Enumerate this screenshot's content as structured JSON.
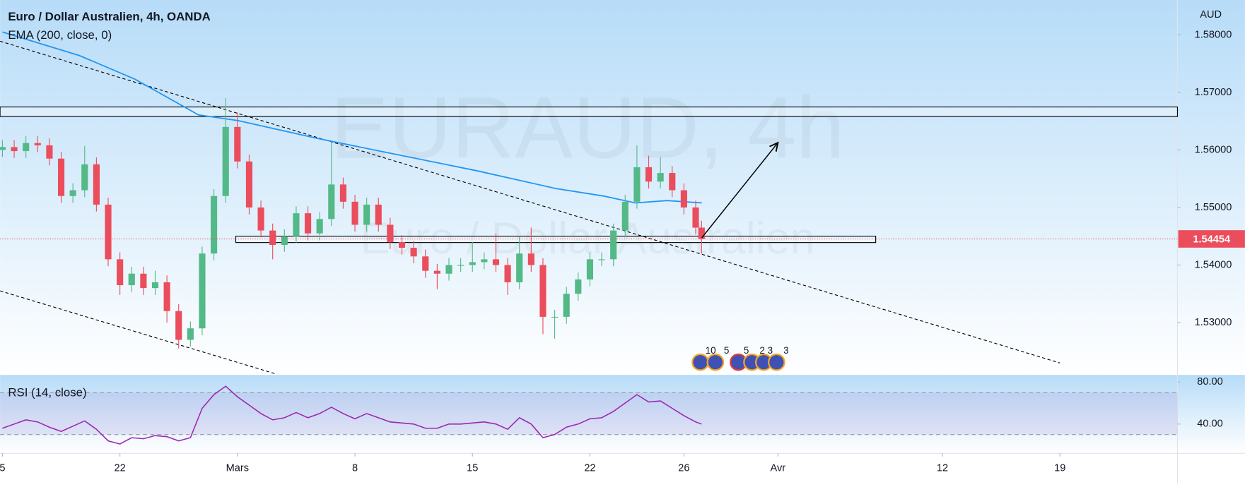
{
  "chart_data": [
    {
      "type": "candlestick",
      "title": "Euro / Dollar Australien, 4h, OANDA",
      "indicator": "EMA (200, close, 0)",
      "currency": "AUD",
      "watermark": "EURAUD, 4h",
      "watermark_subtitle": "Euro / Dollar Australien",
      "x": [
        0,
        0.5,
        1,
        1.5,
        2,
        2.5,
        3,
        3.5,
        4,
        4.5,
        5,
        5.5,
        6,
        6.5,
        7,
        7.5,
        8,
        8.5,
        9,
        9.5,
        10,
        10.5,
        11,
        11.5,
        12,
        12.5,
        13,
        13.5,
        14,
        14.5,
        15,
        15.5,
        16,
        16.5,
        17,
        17.5,
        18,
        18.5,
        19,
        19.5,
        20,
        20.5,
        21,
        21.5,
        22,
        22.5,
        23,
        23.5,
        24,
        24.5,
        25,
        25.5,
        26,
        26.5,
        27,
        27.5,
        28,
        28.5,
        29,
        29.5,
        29.75
      ],
      "open": [
        1.56,
        1.5605,
        1.5598,
        1.5612,
        1.5608,
        1.5585,
        1.552,
        1.553,
        1.5575,
        1.5505,
        1.541,
        1.5365,
        1.5385,
        1.536,
        1.537,
        1.532,
        1.527,
        1.529,
        1.542,
        1.552,
        1.564,
        1.558,
        1.55,
        1.546,
        1.5435,
        1.545,
        1.549,
        1.5455,
        1.548,
        1.554,
        1.551,
        1.547,
        1.5505,
        1.547,
        1.544,
        1.543,
        1.5415,
        1.539,
        1.5385,
        1.54,
        1.54,
        1.5405,
        1.541,
        1.54,
        1.537,
        1.542,
        1.54,
        1.531,
        1.531,
        1.535,
        1.5375,
        1.541,
        1.541,
        1.546,
        1.551,
        1.557,
        1.5545,
        1.556,
        1.553,
        1.55,
        1.5465
      ],
      "high": [
        1.5617,
        1.5617,
        1.5624,
        1.5624,
        1.562,
        1.5597,
        1.5542,
        1.5607,
        1.5587,
        1.5517,
        1.5422,
        1.5397,
        1.5397,
        1.539,
        1.5382,
        1.5332,
        1.5302,
        1.5432,
        1.5532,
        1.569,
        1.5665,
        1.5592,
        1.5512,
        1.5472,
        1.5462,
        1.5502,
        1.5502,
        1.5492,
        1.5612,
        1.5552,
        1.5522,
        1.5517,
        1.5517,
        1.5482,
        1.5452,
        1.5442,
        1.5427,
        1.5402,
        1.5412,
        1.5412,
        1.544,
        1.5422,
        1.5455,
        1.5412,
        1.545,
        1.5465,
        1.5412,
        1.5322,
        1.5362,
        1.5387,
        1.5422,
        1.5422,
        1.5472,
        1.5522,
        1.5608,
        1.559,
        1.5588,
        1.5572,
        1.5542,
        1.5512,
        1.5477
      ],
      "low": [
        1.5588,
        1.5586,
        1.5586,
        1.5596,
        1.5573,
        1.5508,
        1.5508,
        1.5518,
        1.5493,
        1.5398,
        1.5348,
        1.5353,
        1.5348,
        1.5348,
        1.53,
        1.5255,
        1.5258,
        1.5278,
        1.5408,
        1.5508,
        1.5568,
        1.5488,
        1.5448,
        1.541,
        1.5423,
        1.5438,
        1.5443,
        1.5443,
        1.5468,
        1.5498,
        1.5458,
        1.5458,
        1.5458,
        1.5428,
        1.5418,
        1.5403,
        1.5378,
        1.5358,
        1.5373,
        1.5388,
        1.5388,
        1.5393,
        1.5388,
        1.5348,
        1.5358,
        1.5388,
        1.528,
        1.5272,
        1.5298,
        1.5338,
        1.5363,
        1.5398,
        1.5398,
        1.5448,
        1.5498,
        1.5533,
        1.5533,
        1.5518,
        1.5488,
        1.5453,
        1.542
      ],
      "close": [
        1.5605,
        1.5598,
        1.5612,
        1.5608,
        1.5585,
        1.552,
        1.553,
        1.5575,
        1.5505,
        1.541,
        1.5365,
        1.5385,
        1.536,
        1.537,
        1.532,
        1.527,
        1.529,
        1.542,
        1.552,
        1.564,
        1.558,
        1.55,
        1.546,
        1.5435,
        1.545,
        1.549,
        1.5455,
        1.548,
        1.554,
        1.551,
        1.547,
        1.5505,
        1.547,
        1.544,
        1.543,
        1.5415,
        1.539,
        1.5385,
        1.54,
        1.54,
        1.5405,
        1.541,
        1.54,
        1.537,
        1.542,
        1.54,
        1.531,
        1.531,
        1.535,
        1.5375,
        1.541,
        1.541,
        1.546,
        1.551,
        1.557,
        1.5545,
        1.556,
        1.553,
        1.55,
        1.5465,
        1.54454
      ],
      "up_color": "#53b987",
      "down_color": "#eb4d5c",
      "ema": {
        "color": "#2196f3",
        "x": [
          0,
          3.28,
          5.64,
          8.34,
          10.03,
          13.41,
          16.79,
          20.17,
          23.55,
          25.57,
          26.93,
          28.28,
          29.76
        ],
        "values": [
          1.5805,
          1.5764,
          1.5723,
          1.5661,
          1.5651,
          1.562,
          1.5592,
          1.5564,
          1.5533,
          1.552,
          1.5508,
          1.5512,
          1.5508
        ]
      },
      "zones": [
        {
          "top": 1.56747,
          "bottom": 1.56581
        },
        {
          "top": 1.54501,
          "bottom": 1.54391,
          "x": [
            9.93,
            37.16
          ]
        }
      ],
      "trendlines": [
        {
          "x": [
            -0.1,
            45.0
          ],
          "y": [
            1.5789,
            1.52298
          ]
        },
        {
          "x": [
            -0.1,
            11.66
          ],
          "y": [
            1.53551,
            1.52105
          ]
        }
      ],
      "arrow": {
        "x": [
          29.76,
          33.0
        ],
        "y": [
          1.54474,
          1.56127
        ]
      },
      "event_labels": [
        "10",
        "5",
        "5",
        "2",
        "3",
        "3"
      ],
      "xlim": [
        -0.1,
        50
      ],
      "ylim": [
        1.52091,
        1.58606
      ],
      "yticks": [
        {
          "value": 1.58,
          "label": "1.58000"
        },
        {
          "value": 1.57,
          "label": "1.57000"
        },
        {
          "value": 1.56,
          "label": "1.56000"
        },
        {
          "value": 1.55,
          "label": "1.55000"
        },
        {
          "value": 1.54,
          "label": "1.54000"
        },
        {
          "value": 1.53,
          "label": "1.53000"
        }
      ],
      "xticks": [
        {
          "value": 0,
          "label": "5"
        },
        {
          "value": 5,
          "label": "22"
        },
        {
          "value": 10,
          "label": "Mars"
        },
        {
          "value": 15,
          "label": "8"
        },
        {
          "value": 20,
          "label": "15"
        },
        {
          "value": 25,
          "label": "22"
        },
        {
          "value": 29,
          "label": "26"
        },
        {
          "value": 33,
          "label": "Avr"
        },
        {
          "value": 40,
          "label": "12"
        },
        {
          "value": 45,
          "label": "19"
        }
      ]
    },
    {
      "type": "line",
      "title": "RSI (14, close)",
      "color": "#9c27b0",
      "x": [
        0,
        0.5,
        1,
        1.5,
        2,
        2.5,
        3,
        3.5,
        4,
        4.5,
        5,
        5.5,
        6,
        6.5,
        7,
        7.5,
        8,
        8.5,
        9,
        9.5,
        10,
        10.5,
        11,
        11.5,
        12,
        12.5,
        13,
        13.5,
        14,
        14.5,
        15,
        15.5,
        16,
        16.5,
        17,
        17.5,
        18,
        18.5,
        19,
        19.5,
        20,
        20.5,
        21,
        21.5,
        22,
        22.5,
        23,
        23.5,
        24,
        24.5,
        25,
        25.5,
        26,
        26.5,
        27,
        27.5,
        28,
        28.5,
        29,
        29.5,
        29.75
      ],
      "values": [
        36,
        40,
        44,
        42,
        37,
        33,
        38,
        43,
        35,
        24,
        21,
        27,
        26,
        29,
        28,
        24,
        27,
        55,
        68,
        76,
        66,
        58,
        50,
        44,
        46,
        51,
        46,
        50,
        56,
        50,
        45,
        50,
        46,
        42,
        41,
        40,
        36,
        36,
        40,
        40,
        41,
        42,
        40,
        35,
        46,
        40,
        27,
        30,
        37,
        40,
        45,
        46,
        52,
        60,
        68,
        61,
        62,
        55,
        48,
        42,
        40
      ],
      "bands": [
        70,
        30
      ],
      "xlim": [
        -0.1,
        50
      ],
      "ylim": [
        12.1,
        86.8
      ],
      "yticks": [
        {
          "value": 80,
          "label": "80.00"
        },
        {
          "value": 40,
          "label": "40.00"
        }
      ]
    }
  ]
}
